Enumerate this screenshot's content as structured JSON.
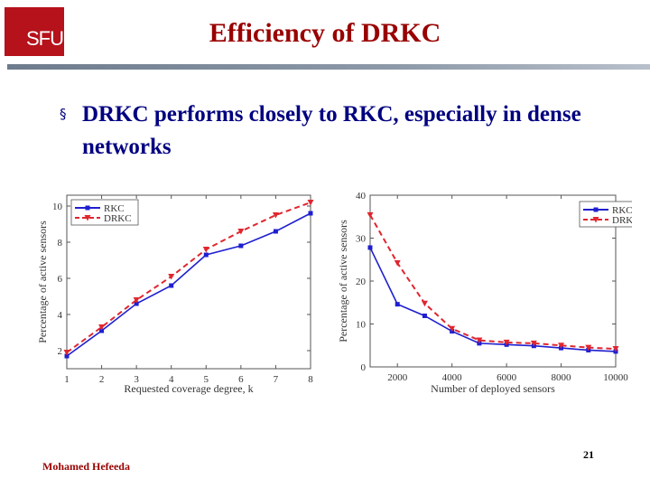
{
  "logo": {
    "text": "SFU",
    "color": "#b5121b"
  },
  "slide": {
    "title": "Efficiency of DRKC",
    "bullet_symbol": "§",
    "bullet_text": "DRKC performs closely to RKC, especially in dense networks",
    "footer": "Mohamed Hefeeda",
    "page": "21"
  },
  "colors": {
    "title": "#990000",
    "bullet": "#000080",
    "rkc": "#1f1fd0",
    "drkc": "#e0262f"
  },
  "chart_data": [
    {
      "type": "line",
      "title": "",
      "xlabel": "Requested coverage degree, k",
      "ylabel": "Percentage of active sensors",
      "xlim": [
        1,
        8
      ],
      "ylim": [
        1,
        10.6
      ],
      "xticks": [
        1,
        2,
        3,
        4,
        5,
        6,
        7,
        8
      ],
      "yticks": [
        2,
        4,
        6,
        8,
        10
      ],
      "legend_position": "top-left",
      "series": [
        {
          "name": "RKC",
          "x": [
            1,
            2,
            3,
            4,
            5,
            6,
            7,
            8
          ],
          "y": [
            1.7,
            3.1,
            4.6,
            5.6,
            7.3,
            7.8,
            8.6,
            9.6
          ]
        },
        {
          "name": "DRKC",
          "x": [
            1,
            2,
            3,
            4,
            5,
            6,
            7,
            8
          ],
          "y": [
            1.9,
            3.3,
            4.8,
            6.1,
            7.6,
            8.6,
            9.5,
            10.2
          ]
        }
      ]
    },
    {
      "type": "line",
      "title": "",
      "xlabel": "Number of deployed sensors",
      "ylabel": "Percentage of active sensors",
      "xlim": [
        1000,
        10000
      ],
      "ylim": [
        0,
        40
      ],
      "xticks": [
        2000,
        4000,
        6000,
        8000,
        10000
      ],
      "yticks": [
        0,
        10,
        20,
        30,
        40
      ],
      "legend_position": "top-right",
      "series": [
        {
          "name": "RKC",
          "x": [
            1000,
            2000,
            3000,
            4000,
            5000,
            6000,
            7000,
            8000,
            9000,
            10000
          ],
          "y": [
            27.8,
            14.6,
            11.9,
            8.3,
            5.5,
            5.2,
            4.9,
            4.4,
            3.9,
            3.6
          ]
        },
        {
          "name": "DRKC",
          "x": [
            1000,
            2000,
            3000,
            4000,
            5000,
            6000,
            7000,
            8000,
            9000,
            10000
          ],
          "y": [
            35.4,
            24.2,
            14.8,
            8.9,
            6.2,
            5.7,
            5.5,
            5.0,
            4.5,
            4.2
          ]
        }
      ]
    }
  ]
}
